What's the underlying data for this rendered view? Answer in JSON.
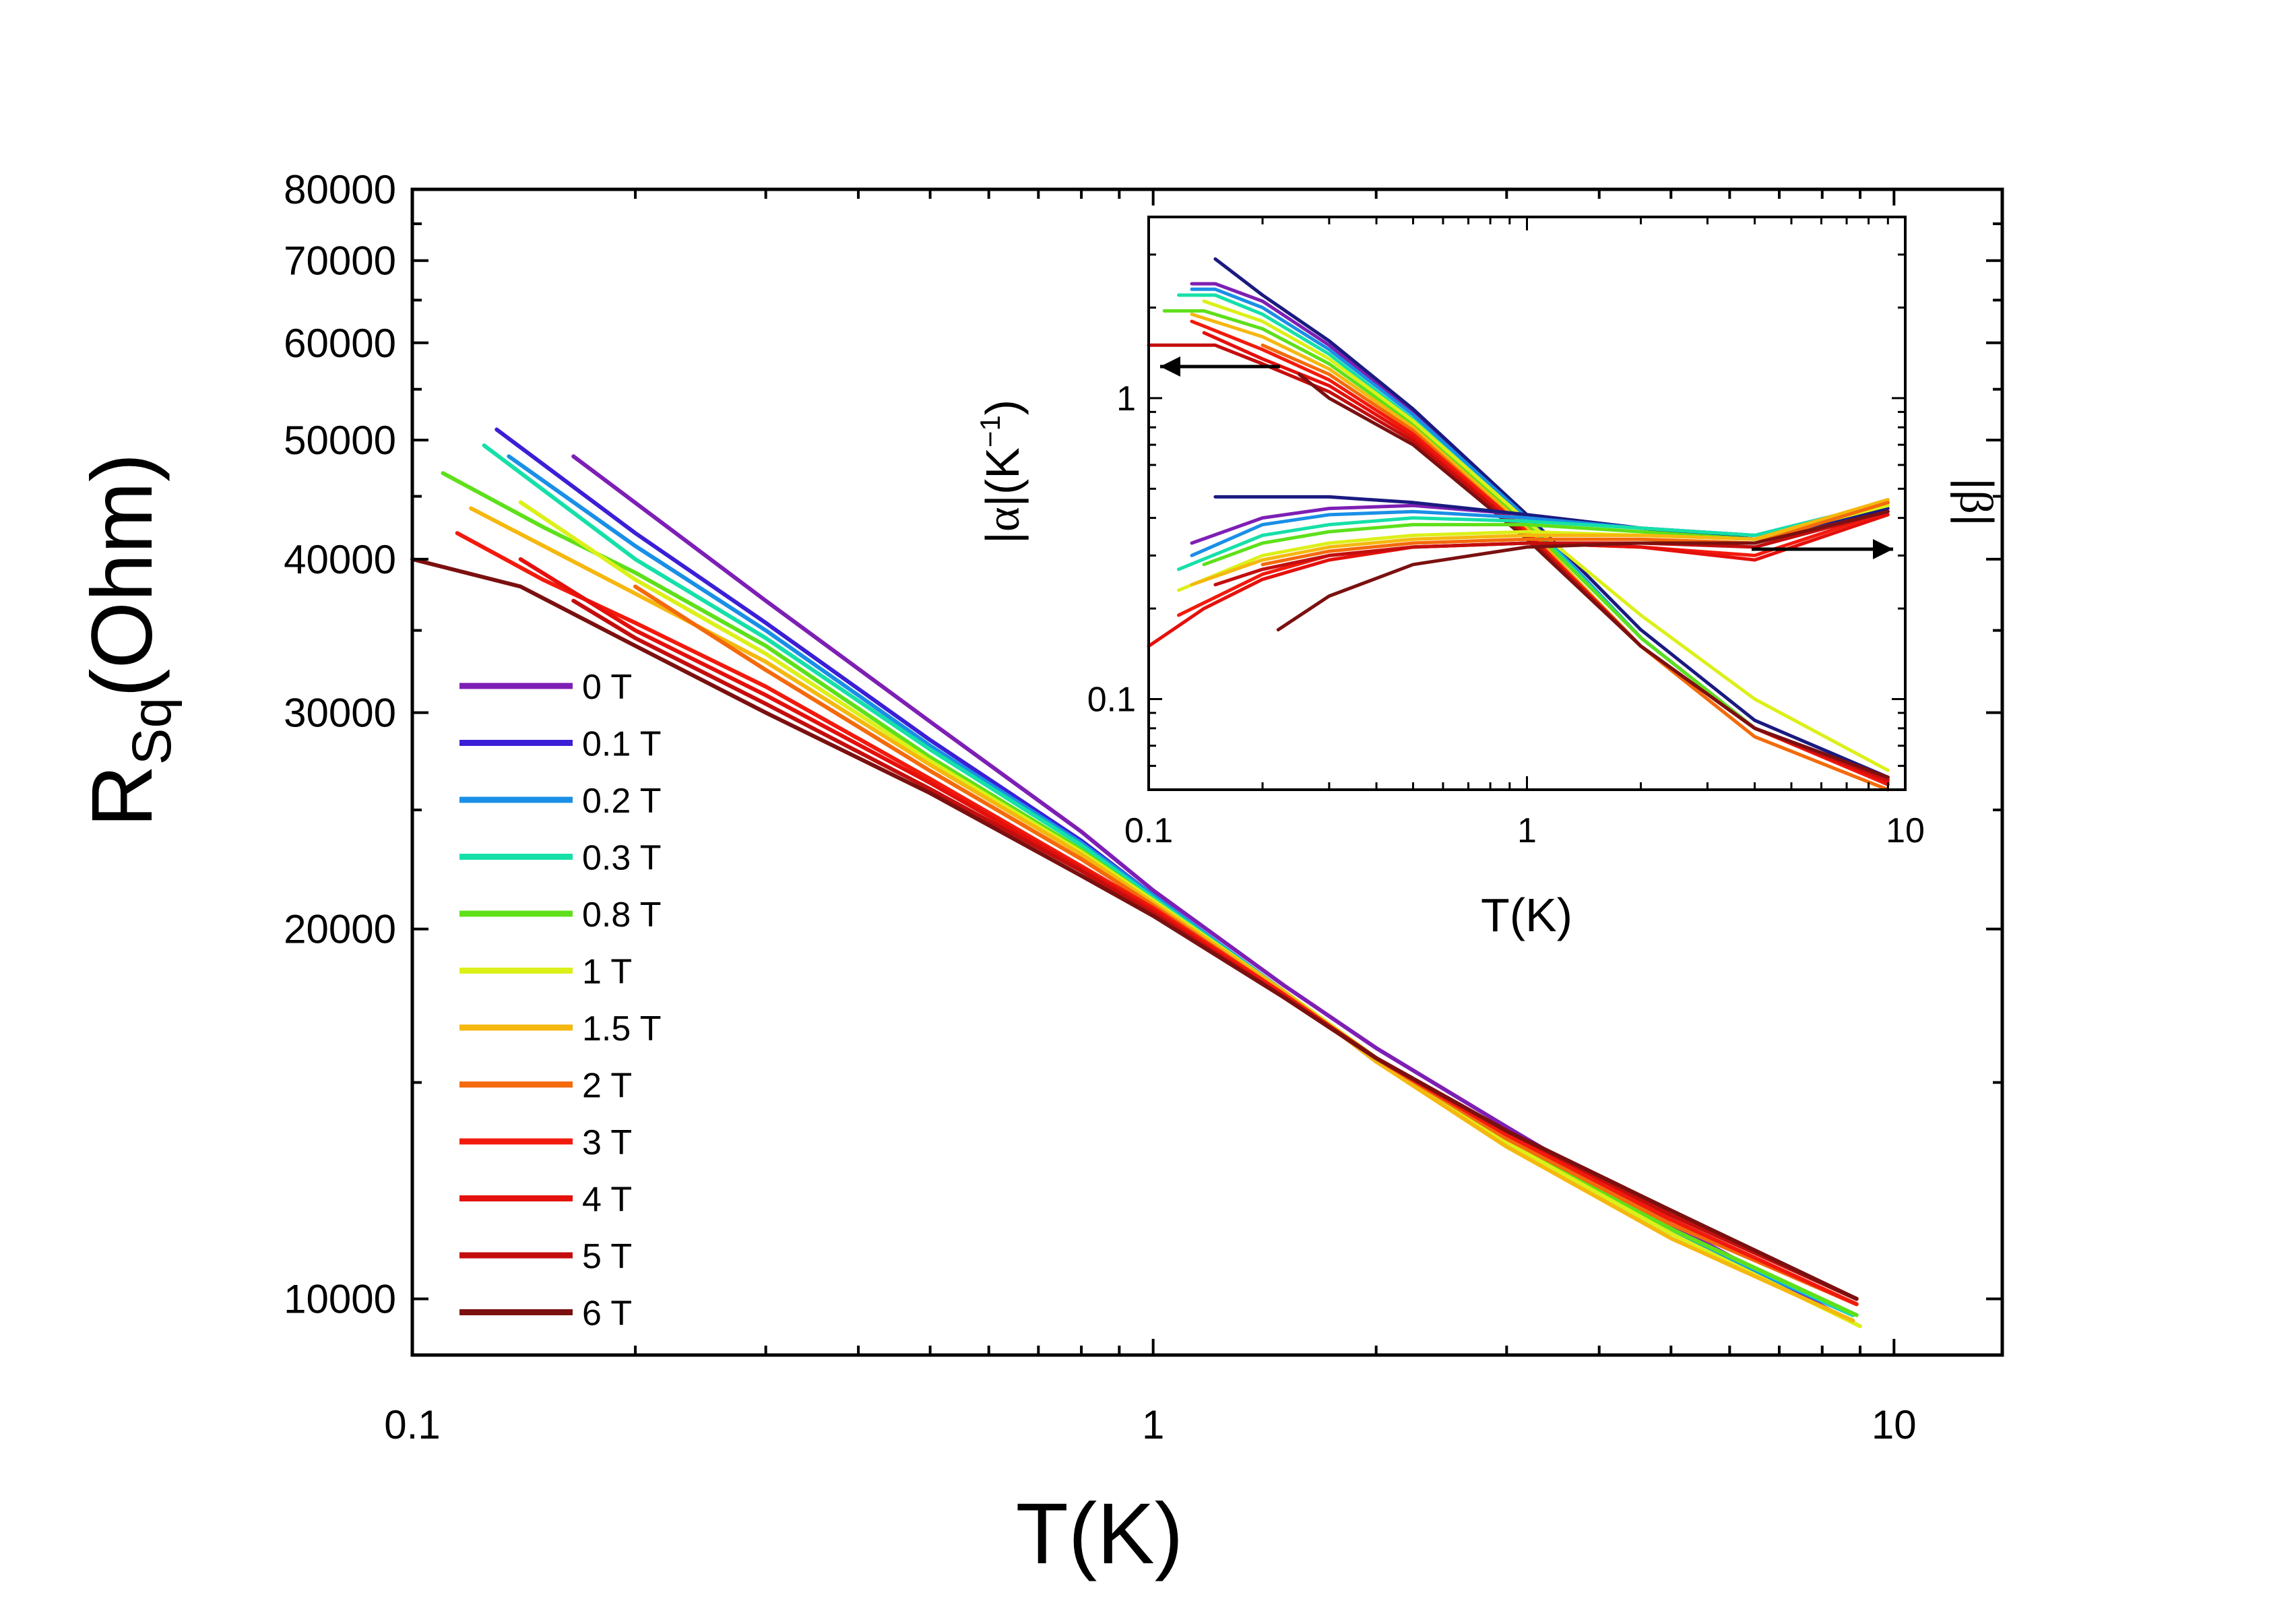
{
  "chart_data": [
    {
      "type": "line",
      "id": "main",
      "title": "",
      "xlabel": "T(K)",
      "ylabel_main": "R",
      "ylabel_sub": "Sq",
      "ylabel_tail": "(Ohm)",
      "xscale": "log",
      "yscale": "log",
      "xlim": [
        0.1,
        14
      ],
      "ylim": [
        9000,
        80000
      ],
      "x_ticks": [
        {
          "value": 0.1,
          "label": "0.1"
        },
        {
          "value": 1,
          "label": "1"
        },
        {
          "value": 10,
          "label": "10"
        }
      ],
      "y_ticks": [
        {
          "value": 10000,
          "label": "10000"
        },
        {
          "value": 20000,
          "label": "20000"
        },
        {
          "value": 30000,
          "label": "30000"
        },
        {
          "value": 40000,
          "label": "40000"
        },
        {
          "value": 50000,
          "label": "50000"
        },
        {
          "value": 60000,
          "label": "60000"
        },
        {
          "value": 70000,
          "label": "70000"
        },
        {
          "value": 80000,
          "label": "80000"
        }
      ],
      "legend_position": "left",
      "series": [
        {
          "name": "0 T",
          "color": "#7e1fb4",
          "x": [
            0.165,
            0.3,
            0.5,
            0.8,
            1,
            1.5,
            2,
            3,
            5,
            8.7
          ],
          "y": [
            48500,
            37000,
            29500,
            24000,
            21500,
            18000,
            16000,
            13800,
            11500,
            9600
          ]
        },
        {
          "name": "0.1 T",
          "color": "#3b1fd6",
          "x": [
            0.13,
            0.2,
            0.3,
            0.5,
            0.8,
            1,
            1.5,
            2,
            3,
            5,
            8.8
          ],
          "y": [
            51000,
            42000,
            35500,
            28500,
            23600,
            21300,
            17800,
            15700,
            13500,
            11400,
            9700
          ]
        },
        {
          "name": "0.2 T",
          "color": "#1a8fe6",
          "x": [
            0.135,
            0.2,
            0.3,
            0.5,
            0.8,
            1,
            1.5,
            2,
            3,
            5,
            8.8
          ],
          "y": [
            48500,
            41000,
            35000,
            28200,
            23500,
            21300,
            17800,
            15600,
            13400,
            11300,
            9700
          ]
        },
        {
          "name": "0.3 T",
          "color": "#16e0a8",
          "x": [
            0.125,
            0.2,
            0.3,
            0.5,
            0.8,
            1,
            1.5,
            2,
            3,
            5,
            8.8
          ],
          "y": [
            49500,
            40000,
            34500,
            28000,
            23400,
            21200,
            17800,
            15700,
            13500,
            11400,
            9700
          ]
        },
        {
          "name": "0.8 T",
          "color": "#5ee01a",
          "x": [
            0.11,
            0.15,
            0.2,
            0.3,
            0.5,
            0.8,
            1,
            1.5,
            2,
            3,
            5,
            8.9
          ],
          "y": [
            47000,
            42500,
            39000,
            34000,
            27600,
            23200,
            21100,
            17800,
            15700,
            13500,
            11400,
            9700
          ]
        },
        {
          "name": "1 T",
          "color": "#dcf019",
          "x": [
            0.14,
            0.2,
            0.3,
            0.5,
            0.8,
            1,
            1.5,
            2,
            3,
            5,
            9
          ],
          "y": [
            44500,
            38500,
            33500,
            27400,
            23100,
            21100,
            17800,
            15700,
            13400,
            11300,
            9500
          ]
        },
        {
          "name": "1.5 T",
          "color": "#f5b80f",
          "x": [
            0.12,
            0.2,
            0.3,
            0.5,
            0.8,
            1,
            1.5,
            2,
            3,
            5,
            8.8
          ],
          "y": [
            44000,
            37500,
            33000,
            27200,
            23000,
            21000,
            17800,
            15600,
            13300,
            11200,
            9600
          ]
        },
        {
          "name": "2 T",
          "color": "#f46a0c",
          "x": [
            0.2,
            0.3,
            0.5,
            0.8,
            1,
            1.5,
            2,
            3,
            5,
            8.9
          ],
          "y": [
            38000,
            32500,
            26900,
            22800,
            20900,
            17700,
            15700,
            13500,
            11500,
            9900
          ]
        },
        {
          "name": "3 T",
          "color": "#f21a0c",
          "x": [
            0.115,
            0.15,
            0.2,
            0.3,
            0.5,
            0.8,
            1,
            1.5,
            2,
            3,
            5,
            8.9
          ],
          "y": [
            42000,
            38500,
            35500,
            31500,
            26500,
            22500,
            20800,
            17700,
            15700,
            13600,
            11600,
            9900
          ]
        },
        {
          "name": "4 T",
          "color": "#e4100c",
          "x": [
            0.14,
            0.2,
            0.3,
            0.5,
            0.8,
            1,
            1.5,
            2,
            3,
            5,
            8.9
          ],
          "y": [
            40000,
            35000,
            31000,
            26300,
            22400,
            20700,
            17600,
            15700,
            13700,
            11700,
            10000
          ]
        },
        {
          "name": "5 T",
          "color": "#c40e0e",
          "x": [
            0.165,
            0.2,
            0.3,
            0.5,
            0.8,
            1,
            1.5,
            2,
            3,
            5,
            8.9
          ],
          "y": [
            37000,
            34500,
            30500,
            26000,
            22300,
            20600,
            17600,
            15700,
            13700,
            11700,
            10000
          ]
        },
        {
          "name": "6 T",
          "color": "#7b1010",
          "x": [
            0.1,
            0.14,
            0.2,
            0.3,
            0.5,
            0.8,
            1,
            1.5,
            2,
            3,
            5,
            8.9
          ],
          "y": [
            40000,
            38000,
            34000,
            30000,
            25800,
            22100,
            20500,
            17600,
            15700,
            13700,
            11800,
            10000
          ]
        }
      ]
    },
    {
      "type": "line",
      "id": "inset",
      "xlabel": "T(K)",
      "ylabel_left_symbol": "α",
      "ylabel_left_unit": "(K",
      "ylabel_left_exp": "−1",
      "ylabel_left_close": ")",
      "ylabel_right_symbol": "β",
      "xscale": "log",
      "yscale": "log",
      "xlim": [
        0.1,
        10
      ],
      "ylim": [
        0.05,
        4
      ],
      "x_ticks": [
        {
          "value": 0.1,
          "label": "0.1"
        },
        {
          "value": 1,
          "label": "1"
        },
        {
          "value": 10,
          "label": "10"
        }
      ],
      "y_ticks": [
        {
          "value": 0.1,
          "label": "0.1"
        },
        {
          "value": 1,
          "label": "1"
        }
      ],
      "alpha_series": [
        {
          "name": "0 T",
          "color": "#7e1fb4",
          "x": [
            0.13,
            0.15,
            0.2,
            0.3,
            0.5,
            1,
            2,
            4,
            9
          ],
          "y": [
            2.4,
            2.4,
            2.1,
            1.5,
            0.9,
            0.4,
            0.16,
            0.08,
            0.055
          ]
        },
        {
          "name": "0.1 T",
          "color": "#1a1a80",
          "x": [
            0.15,
            0.2,
            0.3,
            0.5,
            1,
            2,
            4,
            9
          ],
          "y": [
            2.9,
            2.2,
            1.55,
            0.92,
            0.41,
            0.17,
            0.085,
            0.055
          ]
        },
        {
          "name": "0.2 T",
          "color": "#1a8fe6",
          "x": [
            0.13,
            0.15,
            0.2,
            0.3,
            0.5,
            1,
            2,
            4,
            9
          ],
          "y": [
            2.3,
            2.3,
            2.0,
            1.45,
            0.88,
            0.4,
            0.16,
            0.08,
            0.054
          ]
        },
        {
          "name": "0.3 T",
          "color": "#16e0a8",
          "x": [
            0.12,
            0.15,
            0.2,
            0.3,
            0.5,
            1,
            2,
            4,
            9
          ],
          "y": [
            2.2,
            2.2,
            1.9,
            1.4,
            0.85,
            0.39,
            0.16,
            0.08,
            0.054
          ]
        },
        {
          "name": "0.8 T",
          "color": "#5ee01a",
          "x": [
            0.11,
            0.14,
            0.2,
            0.3,
            0.5,
            1,
            2,
            4,
            9
          ],
          "y": [
            1.95,
            1.95,
            1.7,
            1.3,
            0.82,
            0.38,
            0.16,
            0.08,
            0.053
          ]
        },
        {
          "name": "1 T",
          "color": "#dcf019",
          "x": [
            0.14,
            0.2,
            0.3,
            0.5,
            1,
            2,
            4,
            9
          ],
          "y": [
            2.1,
            1.8,
            1.35,
            0.84,
            0.39,
            0.19,
            0.1,
            0.058
          ]
        },
        {
          "name": "1.5 T",
          "color": "#f5b80f",
          "x": [
            0.13,
            0.2,
            0.3,
            0.5,
            1,
            2,
            4,
            9
          ],
          "y": [
            1.9,
            1.6,
            1.25,
            0.8,
            0.37,
            0.15,
            0.075,
            0.05
          ]
        },
        {
          "name": "2 T",
          "color": "#f46a0c",
          "x": [
            0.2,
            0.3,
            0.5,
            1,
            2,
            4,
            9
          ],
          "y": [
            1.5,
            1.2,
            0.78,
            0.36,
            0.15,
            0.075,
            0.05
          ]
        },
        {
          "name": "3 T",
          "color": "#f21a0c",
          "x": [
            0.13,
            0.2,
            0.3,
            0.5,
            1,
            2,
            4,
            9
          ],
          "y": [
            1.8,
            1.45,
            1.15,
            0.76,
            0.36,
            0.15,
            0.08,
            0.052
          ]
        },
        {
          "name": "4 T",
          "color": "#e4100c",
          "x": [
            0.14,
            0.2,
            0.3,
            0.5,
            1,
            2,
            4,
            9
          ],
          "y": [
            1.65,
            1.35,
            1.1,
            0.74,
            0.35,
            0.15,
            0.08,
            0.053
          ]
        },
        {
          "name": "5 T",
          "color": "#c40e0e",
          "x": [
            0.1,
            0.15,
            0.2,
            0.3,
            0.5,
            1,
            2,
            4,
            9
          ],
          "y": [
            1.5,
            1.5,
            1.3,
            1.05,
            0.72,
            0.35,
            0.15,
            0.08,
            0.054
          ]
        },
        {
          "name": "6 T",
          "color": "#7b1010",
          "x": [
            0.25,
            0.3,
            0.5,
            1,
            2,
            4,
            9
          ],
          "y": [
            1.2,
            1.0,
            0.7,
            0.34,
            0.15,
            0.08,
            0.055
          ]
        }
      ],
      "beta_series": [
        {
          "name": "0 T",
          "color": "#7e1fb4",
          "x": [
            0.13,
            0.2,
            0.3,
            0.5,
            1,
            2,
            4,
            9
          ],
          "y": [
            0.33,
            0.4,
            0.43,
            0.44,
            0.41,
            0.37,
            0.35,
            0.45
          ]
        },
        {
          "name": "0.1 T",
          "color": "#1a1a80",
          "x": [
            0.15,
            0.3,
            0.5,
            1,
            2,
            4,
            9
          ],
          "y": [
            0.47,
            0.47,
            0.45,
            0.41,
            0.37,
            0.34,
            0.43
          ]
        },
        {
          "name": "0.2 T",
          "color": "#1a8fe6",
          "x": [
            0.13,
            0.2,
            0.3,
            0.5,
            1,
            2,
            4,
            9
          ],
          "y": [
            0.3,
            0.38,
            0.41,
            0.42,
            0.4,
            0.37,
            0.35,
            0.45
          ]
        },
        {
          "name": "0.3 T",
          "color": "#16e0a8",
          "x": [
            0.12,
            0.2,
            0.3,
            0.5,
            1,
            2,
            4,
            9
          ],
          "y": [
            0.27,
            0.35,
            0.38,
            0.4,
            0.39,
            0.37,
            0.35,
            0.45
          ]
        },
        {
          "name": "0.8 T",
          "color": "#5ee01a",
          "x": [
            0.14,
            0.2,
            0.3,
            0.5,
            1,
            2,
            4,
            9
          ],
          "y": [
            0.28,
            0.33,
            0.36,
            0.38,
            0.38,
            0.36,
            0.34,
            0.44
          ]
        },
        {
          "name": "1 T",
          "color": "#dcf019",
          "x": [
            0.12,
            0.2,
            0.3,
            0.5,
            1,
            2,
            4,
            9
          ],
          "y": [
            0.23,
            0.3,
            0.33,
            0.35,
            0.36,
            0.35,
            0.34,
            0.44
          ]
        },
        {
          "name": "1.5 T",
          "color": "#f5b80f",
          "x": [
            0.13,
            0.2,
            0.3,
            0.5,
            1,
            2,
            4,
            9
          ],
          "y": [
            0.24,
            0.29,
            0.32,
            0.34,
            0.35,
            0.35,
            0.34,
            0.46
          ]
        },
        {
          "name": "2 T",
          "color": "#f46a0c",
          "x": [
            0.2,
            0.3,
            0.5,
            1,
            2,
            4,
            9
          ],
          "y": [
            0.28,
            0.31,
            0.33,
            0.34,
            0.34,
            0.33,
            0.45
          ]
        },
        {
          "name": "3 T",
          "color": "#f21a0c",
          "x": [
            0.12,
            0.2,
            0.3,
            0.5,
            1,
            2,
            4,
            9
          ],
          "y": [
            0.19,
            0.26,
            0.3,
            0.32,
            0.33,
            0.32,
            0.3,
            0.42
          ]
        },
        {
          "name": "4 T",
          "color": "#e4100c",
          "x": [
            0.1,
            0.14,
            0.2,
            0.3,
            0.5,
            1,
            2,
            4,
            9
          ],
          "y": [
            0.15,
            0.2,
            0.25,
            0.29,
            0.32,
            0.33,
            0.32,
            0.29,
            0.41
          ]
        },
        {
          "name": "5 T",
          "color": "#c40e0e",
          "x": [
            0.15,
            0.2,
            0.3,
            0.5,
            1,
            2,
            4,
            9
          ],
          "y": [
            0.24,
            0.27,
            0.3,
            0.32,
            0.33,
            0.33,
            0.32,
            0.42
          ]
        },
        {
          "name": "6 T",
          "color": "#7b1010",
          "x": [
            0.22,
            0.3,
            0.5,
            1,
            2,
            4,
            9
          ],
          "y": [
            0.17,
            0.22,
            0.28,
            0.32,
            0.33,
            0.33,
            0.42
          ]
        }
      ]
    }
  ]
}
